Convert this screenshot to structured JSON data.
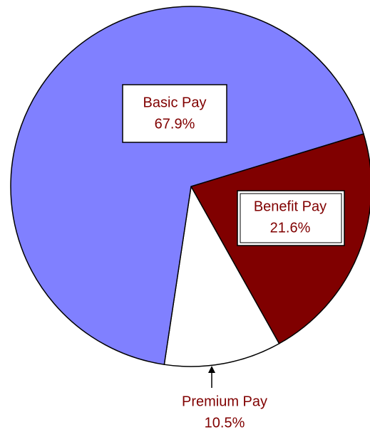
{
  "chart_data": {
    "type": "pie",
    "categories": [
      "Benefit Pay",
      "Premium Pay",
      "Basic Pay"
    ],
    "values": [
      21.6,
      10.5,
      67.9
    ],
    "value_labels": [
      "21.6%",
      "10.5%",
      "67.9%"
    ],
    "colors": [
      "#800000",
      "#ffffff",
      "#8080ff"
    ]
  }
}
